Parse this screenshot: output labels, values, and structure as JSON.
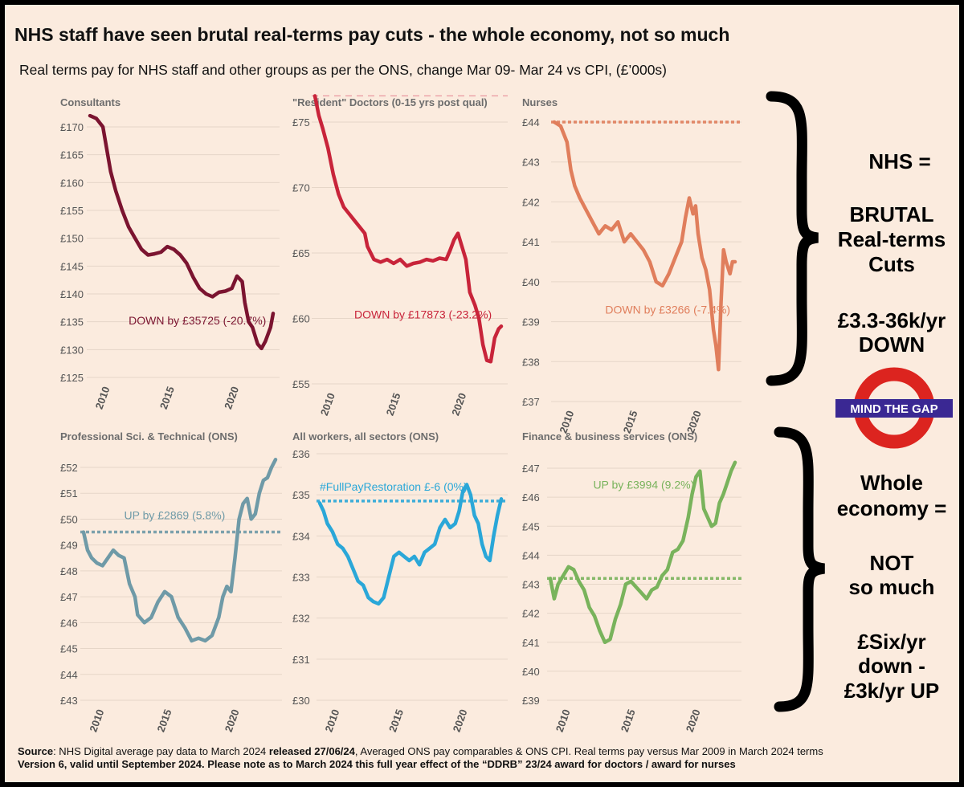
{
  "title": "NHS staff have seen brutal real-terms pay cuts - the whole economy, not so much",
  "subtitle": "Real terms pay for NHS staff and other groups as per the ONS, change Mar 09- Mar 24 vs CPI, (£’000s)",
  "colors": {
    "background": "#fbebde",
    "consultants": "#7b1430",
    "resident": "#c8243a",
    "nurses": "#e07e5c",
    "professional": "#6f9aa7",
    "allworkers": "#2aa7d8",
    "finance": "#79b35c",
    "roundel_red": "#dc241f",
    "roundel_bar": "#3a2893"
  },
  "chart_data": [
    {
      "type": "line",
      "title": "Consultants",
      "color": "#7b1430",
      "ylim": [
        125,
        172
      ],
      "yticks": [
        170,
        165,
        160,
        155,
        150,
        145,
        140,
        135,
        130,
        125
      ],
      "xticks": [
        2010,
        2015,
        2020
      ],
      "series": [
        {
          "name": "Consultants",
          "x": [
            2009,
            2009.5,
            2010,
            2010.3,
            2010.6,
            2011,
            2011.5,
            2012,
            2012.5,
            2013,
            2013.5,
            2014,
            2014.5,
            2015,
            2015.5,
            2016,
            2016.5,
            2017,
            2017.5,
            2018,
            2018.5,
            2019,
            2019.5,
            2020,
            2020.4,
            2020.8,
            2021,
            2021.3,
            2021.6,
            2022,
            2022.3,
            2022.6,
            2023,
            2023.2
          ],
          "values": [
            172,
            171.5,
            170,
            166,
            162,
            158.5,
            155,
            152,
            150,
            148,
            147,
            147.2,
            147.5,
            148.5,
            148,
            147,
            145.5,
            143,
            141,
            140,
            139.5,
            140.3,
            140.5,
            141,
            143.2,
            142.2,
            138.5,
            135,
            134,
            131,
            130.2,
            131.5,
            134,
            136.5
          ]
        }
      ],
      "annotation": "DOWN by  £35725 (-20.7%)",
      "annotation_at": [
        2012,
        134.5
      ]
    },
    {
      "type": "line",
      "title": "\"Resident\" Doctors (0-15 yrs post qual)",
      "color": "#c8243a",
      "ylim": [
        55,
        77
      ],
      "yticks": [
        75,
        70,
        65,
        60,
        55
      ],
      "xticks": [
        2010,
        2015,
        2020
      ],
      "reference": 77,
      "series": [
        {
          "name": "Resident Doctors",
          "x": [
            2009,
            2009.3,
            2009.6,
            2010,
            2010.4,
            2010.8,
            2011.2,
            2011.6,
            2012,
            2012.4,
            2012.8,
            2013,
            2013.5,
            2014,
            2014.5,
            2015,
            2015.5,
            2016,
            2016.5,
            2017,
            2017.5,
            2018,
            2018.5,
            2019,
            2019.3,
            2019.6,
            2019.9,
            2020.2,
            2020.5,
            2020.8,
            2021.2,
            2021.5,
            2021.8,
            2022.1,
            2022.4,
            2022.7,
            2023,
            2023.2
          ],
          "values": [
            77,
            75.5,
            74.5,
            73,
            71,
            69.5,
            68.5,
            68,
            67.5,
            67,
            66.5,
            65.5,
            64.5,
            64.3,
            64.5,
            64.2,
            64.5,
            64,
            64.2,
            64.3,
            64.5,
            64.4,
            64.6,
            64.5,
            65.2,
            66,
            66.5,
            65.5,
            64.5,
            62,
            61,
            60,
            58,
            56.8,
            56.7,
            58.5,
            59.2,
            59.4
          ]
        }
      ],
      "annotation": "DOWN by  £17873 (-23.2%)",
      "annotation_at": [
        2012,
        60
      ]
    },
    {
      "type": "line",
      "title": "Nurses",
      "color": "#e07e5c",
      "ylim": [
        37,
        44
      ],
      "yticks": [
        44,
        43,
        42,
        41,
        40,
        39,
        38,
        37
      ],
      "xticks": [
        2010,
        2015,
        2020
      ],
      "reference": 44,
      "series": [
        {
          "name": "Nurses",
          "x": [
            2009,
            2009.5,
            2010,
            2010.3,
            2010.6,
            2011,
            2011.5,
            2012,
            2012.5,
            2013,
            2013.5,
            2014,
            2014.5,
            2015,
            2015.5,
            2016,
            2016.5,
            2017,
            2017.5,
            2018,
            2018.5,
            2019,
            2019.3,
            2019.6,
            2019.9,
            2020.1,
            2020.3,
            2020.6,
            2020.9,
            2021.2,
            2021.5,
            2021.7,
            2021.9,
            2022.1,
            2022.3,
            2022.5,
            2022.8,
            2023,
            2023.2
          ],
          "values": [
            44,
            43.9,
            43.5,
            42.8,
            42.4,
            42.1,
            41.8,
            41.5,
            41.2,
            41.4,
            41.3,
            41.5,
            41,
            41.2,
            41,
            40.8,
            40.5,
            40,
            39.9,
            40.2,
            40.6,
            41,
            41.6,
            42.1,
            41.7,
            41.9,
            41.2,
            40.6,
            40.3,
            39.8,
            38.8,
            38.4,
            37.8,
            39.5,
            40.8,
            40.5,
            40.2,
            40.5,
            40.5
          ]
        }
      ],
      "annotation": "DOWN by  £3266 (-7.4%)",
      "annotation_at": [
        2013,
        39.2
      ]
    },
    {
      "type": "line",
      "title": "Professional Sci. & Technical (ONS)",
      "color": "#6f9aa7",
      "ylim": [
        43,
        52.5
      ],
      "yticks": [
        52,
        51,
        50,
        49,
        48,
        47,
        46,
        45,
        44,
        43
      ],
      "xticks": [
        2010,
        2015,
        2020
      ],
      "reference": 49.5,
      "series": [
        {
          "name": "Professional",
          "x": [
            2009,
            2009.3,
            2009.6,
            2010,
            2010.4,
            2010.8,
            2011.2,
            2011.6,
            2012,
            2012.4,
            2012.8,
            2013,
            2013.5,
            2014,
            2014.5,
            2015,
            2015.5,
            2016,
            2016.5,
            2017,
            2017.5,
            2018,
            2018.5,
            2019,
            2019.3,
            2019.6,
            2019.9,
            2020.2,
            2020.5,
            2020.8,
            2021.1,
            2021.4,
            2021.7,
            2022,
            2022.3,
            2022.6,
            2022.9,
            2023.2
          ],
          "values": [
            49.5,
            48.8,
            48.5,
            48.3,
            48.2,
            48.5,
            48.8,
            48.6,
            48.5,
            47.5,
            47,
            46.3,
            46,
            46.2,
            46.8,
            47.2,
            47,
            46.2,
            45.8,
            45.3,
            45.4,
            45.3,
            45.5,
            46.2,
            47,
            47.4,
            47.2,
            48.5,
            50,
            50.6,
            50.8,
            50,
            50.2,
            51,
            51.5,
            51.6,
            52,
            52.3
          ]
        }
      ],
      "annotation": "UP by  £2869 (5.8%)",
      "annotation_at": [
        2012,
        50
      ]
    },
    {
      "type": "line",
      "title": "All workers, all sectors (ONS)",
      "color": "#2aa7d8",
      "ylim": [
        30,
        36
      ],
      "yticks": [
        36,
        35,
        34,
        33,
        32,
        31,
        30
      ],
      "xticks": [
        2010,
        2015,
        2020
      ],
      "reference": 34.85,
      "series": [
        {
          "name": "All workers",
          "x": [
            2009,
            2009.3,
            2009.6,
            2010,
            2010.4,
            2010.8,
            2011.2,
            2011.6,
            2012,
            2012.4,
            2012.8,
            2013.2,
            2013.6,
            2014,
            2014.4,
            2014.8,
            2015.2,
            2015.6,
            2016,
            2016.4,
            2016.8,
            2017.2,
            2017.6,
            2018,
            2018.4,
            2018.8,
            2019.2,
            2019.6,
            2019.9,
            2020.2,
            2020.5,
            2020.8,
            2021.1,
            2021.4,
            2021.7,
            2022,
            2022.3,
            2022.6,
            2022.9,
            2023.2
          ],
          "values": [
            34.8,
            34.6,
            34.3,
            34.1,
            33.8,
            33.7,
            33.5,
            33.2,
            32.9,
            32.8,
            32.5,
            32.4,
            32.35,
            32.5,
            33,
            33.5,
            33.6,
            33.5,
            33.4,
            33.5,
            33.3,
            33.6,
            33.7,
            33.8,
            34.2,
            34.4,
            34.2,
            34.3,
            34.6,
            35.1,
            35.25,
            35,
            34.5,
            34.3,
            33.8,
            33.5,
            33.4,
            34,
            34.5,
            34.9
          ]
        }
      ],
      "annotation": "#FullPayRestoration  £-6 (0%)",
      "annotation_at": [
        2009,
        35.1
      ]
    },
    {
      "type": "line",
      "title": "Finance & business services (ONS)",
      "color": "#79b35c",
      "ylim": [
        39,
        47.5
      ],
      "yticks": [
        47,
        46,
        45,
        44,
        43,
        42,
        41,
        40,
        39
      ],
      "xticks": [
        2010,
        2015,
        2020
      ],
      "reference": 43.2,
      "series": [
        {
          "name": "Finance",
          "x": [
            2009,
            2009.3,
            2009.6,
            2010,
            2010.4,
            2010.8,
            2011.2,
            2011.6,
            2012,
            2012.4,
            2012.8,
            2013.2,
            2013.6,
            2014,
            2014.4,
            2014.8,
            2015.2,
            2015.6,
            2016,
            2016.4,
            2016.8,
            2017.2,
            2017.6,
            2018,
            2018.4,
            2018.8,
            2019.2,
            2019.6,
            2019.9,
            2020.2,
            2020.5,
            2020.8,
            2021.1,
            2021.4,
            2021.7,
            2022,
            2022.3,
            2022.6,
            2022.9,
            2023.2
          ],
          "values": [
            43.2,
            42.5,
            43,
            43.3,
            43.6,
            43.5,
            43.1,
            42.8,
            42.2,
            41.9,
            41.4,
            41,
            41.1,
            41.8,
            42.3,
            43,
            43.1,
            42.9,
            42.7,
            42.5,
            42.8,
            42.9,
            43.3,
            43.5,
            44.1,
            44.2,
            44.5,
            45.3,
            46.1,
            46.7,
            46.9,
            45.6,
            45.3,
            45,
            45.1,
            45.8,
            46.1,
            46.5,
            46.9,
            47.2
          ]
        }
      ],
      "annotation": "UP by  £3994 (9.2%)",
      "annotation_at": [
        2012.3,
        46.3
      ]
    }
  ],
  "side_top": [
    "NHS =",
    "BRUTAL",
    "Real-terms",
    "Cuts",
    "£3.3-36k/yr",
    "DOWN"
  ],
  "side_bottom": [
    "Whole",
    "economy =",
    "NOT",
    "so much",
    "£Six/yr",
    "down -",
    "£3k/yr UP"
  ],
  "logo_text": "MIND THE GAP",
  "footer": {
    "line1_a": "Source",
    "line1_b": ": NHS Digital average pay data to March 2024 ",
    "line1_c": "released 27/06/24",
    "line1_d": ", Averaged ONS pay comparables & ONS CPI. Real terms pay versus Mar 2009 in March 2024 terms",
    "line2": "Version 6, valid until September 2024. Please note as to March 2024  this full year effect of the “DDRB” 23/24 award  for doctors / award for nurses"
  }
}
